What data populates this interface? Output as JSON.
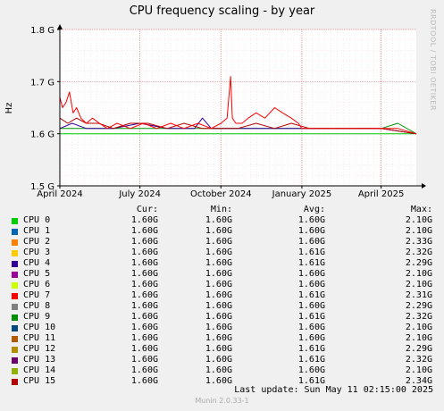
{
  "title": "CPU frequency scaling - by year",
  "side_label": "RRDTOOL / TOBI OETIKER",
  "columns": {
    "cur": "Cur:",
    "min": "Min:",
    "avg": "Avg:",
    "max": "Max:"
  },
  "legend": [
    {
      "name": "CPU 0",
      "color": "#00cc00",
      "cur": "1.60G",
      "min": "1.60G",
      "avg": "1.60G",
      "max": "2.10G"
    },
    {
      "name": "CPU 1",
      "color": "#0066b3",
      "cur": "1.60G",
      "min": "1.60G",
      "avg": "1.60G",
      "max": "2.10G"
    },
    {
      "name": "CPU 2",
      "color": "#ff8000",
      "cur": "1.60G",
      "min": "1.60G",
      "avg": "1.60G",
      "max": "2.33G"
    },
    {
      "name": "CPU 3",
      "color": "#ffcc00",
      "cur": "1.60G",
      "min": "1.60G",
      "avg": "1.61G",
      "max": "2.32G"
    },
    {
      "name": "CPU 4",
      "color": "#330099",
      "cur": "1.60G",
      "min": "1.60G",
      "avg": "1.61G",
      "max": "2.29G"
    },
    {
      "name": "CPU 5",
      "color": "#990099",
      "cur": "1.60G",
      "min": "1.60G",
      "avg": "1.60G",
      "max": "2.10G"
    },
    {
      "name": "CPU 6",
      "color": "#ccff00",
      "cur": "1.60G",
      "min": "1.60G",
      "avg": "1.60G",
      "max": "2.10G"
    },
    {
      "name": "CPU 7",
      "color": "#ff0000",
      "cur": "1.60G",
      "min": "1.60G",
      "avg": "1.61G",
      "max": "2.31G"
    },
    {
      "name": "CPU 8",
      "color": "#808080",
      "cur": "1.60G",
      "min": "1.60G",
      "avg": "1.60G",
      "max": "2.29G"
    },
    {
      "name": "CPU 9",
      "color": "#008f00",
      "cur": "1.60G",
      "min": "1.60G",
      "avg": "1.61G",
      "max": "2.32G"
    },
    {
      "name": "CPU 10",
      "color": "#00487d",
      "cur": "1.60G",
      "min": "1.60G",
      "avg": "1.60G",
      "max": "2.10G"
    },
    {
      "name": "CPU 11",
      "color": "#b35a00",
      "cur": "1.60G",
      "min": "1.60G",
      "avg": "1.60G",
      "max": "2.10G"
    },
    {
      "name": "CPU 12",
      "color": "#b38f00",
      "cur": "1.60G",
      "min": "1.60G",
      "avg": "1.61G",
      "max": "2.29G"
    },
    {
      "name": "CPU 13",
      "color": "#6b006b",
      "cur": "1.60G",
      "min": "1.60G",
      "avg": "1.61G",
      "max": "2.32G"
    },
    {
      "name": "CPU 14",
      "color": "#8fb300",
      "cur": "1.60G",
      "min": "1.60G",
      "avg": "1.60G",
      "max": "2.10G"
    },
    {
      "name": "CPU 15",
      "color": "#b30000",
      "cur": "1.60G",
      "min": "1.60G",
      "avg": "1.61G",
      "max": "2.34G"
    }
  ],
  "last_update": "Last update:  Sun May 11 02:15:00 2025",
  "footer": "Munin 2.0.33-1",
  "chart_data": {
    "type": "line",
    "title": "CPU frequency scaling - by year",
    "ylabel": "Hz",
    "ylim": [
      1.5,
      1.8
    ],
    "ytick_labels": [
      "1.5 G",
      "1.6 G",
      "1.7 G",
      "1.8 G"
    ],
    "ytick_values": [
      1.5,
      1.6,
      1.7,
      1.8
    ],
    "xlim": [
      "2024-04-01",
      "2025-05-11"
    ],
    "xtick_labels": [
      "April 2024",
      "July 2024",
      "October 2024",
      "January 2025",
      "April 2025"
    ],
    "xtick_dates": [
      "2024-04-01",
      "2024-07-01",
      "2024-10-01",
      "2025-01-01",
      "2025-04-01"
    ],
    "grid": true,
    "series": [
      {
        "name": "CPU 7",
        "color": "#ff0000",
        "x": [
          "2024-04-01",
          "2024-04-04",
          "2024-04-08",
          "2024-04-12",
          "2024-04-16",
          "2024-04-20",
          "2024-04-25",
          "2024-05-01",
          "2024-05-08",
          "2024-05-16",
          "2024-05-25",
          "2024-06-05",
          "2024-06-20",
          "2024-07-05",
          "2024-07-20",
          "2024-08-05",
          "2024-08-20",
          "2024-09-05",
          "2024-09-20",
          "2024-10-01",
          "2024-10-08",
          "2024-10-12",
          "2024-10-14",
          "2024-10-18",
          "2024-10-25",
          "2024-11-01",
          "2024-11-10",
          "2024-11-20",
          "2024-12-01",
          "2024-12-10",
          "2024-12-20",
          "2024-12-28",
          "2025-01-01",
          "2025-01-10",
          "2025-01-20",
          "2025-02-01",
          "2025-02-20",
          "2025-03-10",
          "2025-04-01",
          "2025-04-20",
          "2025-05-11"
        ],
        "y": [
          1.67,
          1.65,
          1.66,
          1.68,
          1.64,
          1.65,
          1.63,
          1.62,
          1.63,
          1.62,
          1.61,
          1.62,
          1.61,
          1.62,
          1.61,
          1.62,
          1.61,
          1.62,
          1.61,
          1.62,
          1.63,
          1.71,
          1.63,
          1.62,
          1.62,
          1.63,
          1.64,
          1.63,
          1.65,
          1.64,
          1.63,
          1.62,
          1.61,
          1.61,
          1.61,
          1.61,
          1.61,
          1.61,
          1.61,
          1.61,
          1.6
        ]
      },
      {
        "name": "CPU 15",
        "color": "#b30000",
        "x": [
          "2024-04-01",
          "2024-04-10",
          "2024-04-20",
          "2024-05-01",
          "2024-05-15",
          "2024-06-01",
          "2024-06-20",
          "2024-07-10",
          "2024-08-01",
          "2024-08-20",
          "2024-09-10",
          "2024-10-01",
          "2024-10-20",
          "2024-11-10",
          "2024-12-01",
          "2024-12-20",
          "2025-01-10",
          "2025-02-01",
          "2025-03-01",
          "2025-04-01",
          "2025-05-11"
        ],
        "y": [
          1.63,
          1.62,
          1.63,
          1.62,
          1.62,
          1.61,
          1.62,
          1.62,
          1.61,
          1.62,
          1.61,
          1.61,
          1.61,
          1.62,
          1.61,
          1.62,
          1.61,
          1.61,
          1.61,
          1.61,
          1.6
        ]
      },
      {
        "name": "CPU 4",
        "color": "#330099",
        "x": [
          "2024-04-01",
          "2024-04-15",
          "2024-05-01",
          "2024-06-01",
          "2024-07-01",
          "2024-08-01",
          "2024-09-01",
          "2024-09-10",
          "2024-09-20",
          "2024-10-01",
          "2024-11-01",
          "2024-12-01",
          "2025-01-01",
          "2025-02-01",
          "2025-03-01",
          "2025-04-01",
          "2025-05-11"
        ],
        "y": [
          1.61,
          1.62,
          1.61,
          1.61,
          1.62,
          1.61,
          1.61,
          1.63,
          1.61,
          1.61,
          1.61,
          1.61,
          1.61,
          1.61,
          1.61,
          1.61,
          1.6
        ]
      },
      {
        "name": "CPU 9",
        "color": "#008f00",
        "x": [
          "2024-04-01",
          "2024-05-01",
          "2024-06-01",
          "2024-07-01",
          "2024-08-01",
          "2024-09-01",
          "2024-10-01",
          "2024-11-01",
          "2024-12-01",
          "2025-01-01",
          "2025-02-01",
          "2025-03-01",
          "2025-04-01",
          "2025-04-20",
          "2025-05-11"
        ],
        "y": [
          1.61,
          1.61,
          1.61,
          1.61,
          1.61,
          1.61,
          1.61,
          1.61,
          1.61,
          1.61,
          1.61,
          1.61,
          1.61,
          1.62,
          1.6
        ]
      },
      {
        "name": "CPU 0",
        "color": "#00cc00",
        "x": [
          "2024-04-01",
          "2024-05-01",
          "2024-06-01",
          "2024-07-01",
          "2024-08-01",
          "2024-09-01",
          "2024-10-01",
          "2024-11-01",
          "2024-12-01",
          "2025-01-01",
          "2025-02-01",
          "2025-03-01",
          "2025-04-01",
          "2025-05-11"
        ],
        "y": [
          1.6,
          1.6,
          1.6,
          1.6,
          1.6,
          1.6,
          1.6,
          1.6,
          1.6,
          1.6,
          1.6,
          1.6,
          1.6,
          1.6
        ]
      }
    ]
  }
}
